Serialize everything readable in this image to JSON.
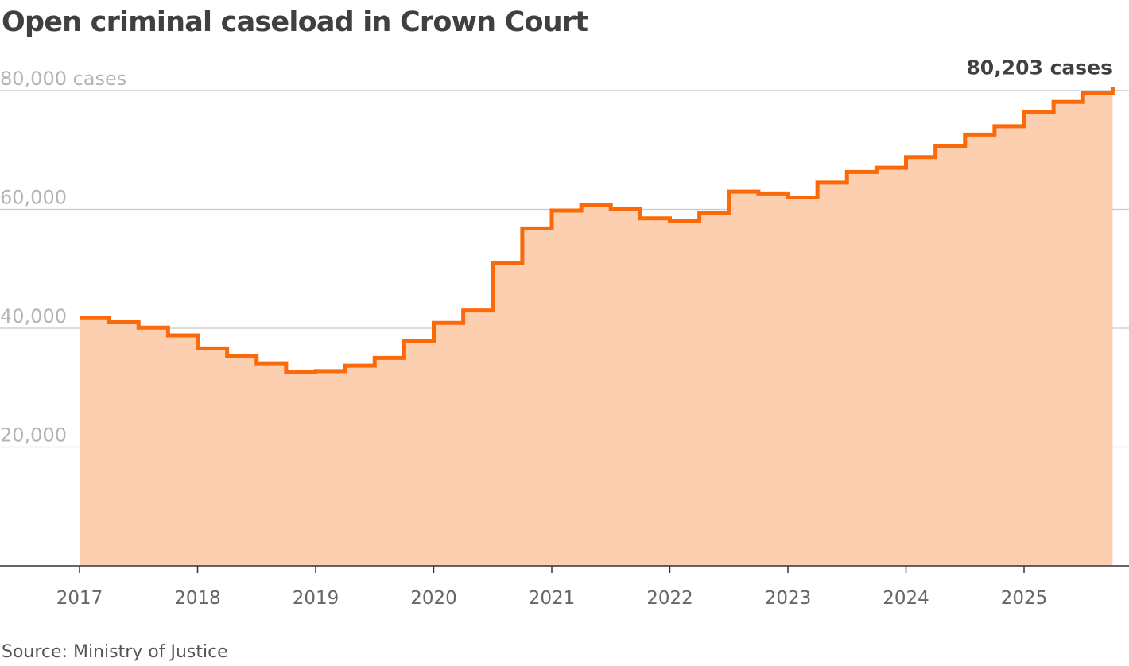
{
  "title": "Open criminal caseload in Crown Court",
  "source": "Source: Ministry of Justice",
  "colors": {
    "line": "#fb6a0a",
    "area": "#fccfb0",
    "grid": "#c8c8c8",
    "axis": "#333333"
  },
  "chart_data": {
    "type": "area",
    "step": true,
    "ylim": [
      0,
      80000
    ],
    "xlim": [
      2017,
      2025.75
    ],
    "yticks": [
      {
        "value": 20000,
        "label": "20,000"
      },
      {
        "value": 40000,
        "label": "40,000"
      },
      {
        "value": 60000,
        "label": "60,000"
      },
      {
        "value": 80000,
        "label": "80,000 cases"
      }
    ],
    "xticks": [
      "2017",
      "2018",
      "2019",
      "2020",
      "2021",
      "2022",
      "2023",
      "2024",
      "2025"
    ],
    "end_label": "80,203 cases",
    "grid": true,
    "x": [
      "2017 Q1",
      "2017 Q2",
      "2017 Q3",
      "2017 Q4",
      "2018 Q1",
      "2018 Q2",
      "2018 Q3",
      "2018 Q4",
      "2019 Q1",
      "2019 Q2",
      "2019 Q3",
      "2019 Q4",
      "2020 Q1",
      "2020 Q2",
      "2020 Q3",
      "2020 Q4",
      "2021 Q1",
      "2021 Q2",
      "2021 Q3",
      "2021 Q4",
      "2022 Q1",
      "2022 Q2",
      "2022 Q3",
      "2022 Q4",
      "2023 Q1",
      "2023 Q2",
      "2023 Q3",
      "2023 Q4",
      "2024 Q1",
      "2024 Q2",
      "2024 Q3",
      "2024 Q4",
      "2025 Q1",
      "2025 Q2",
      "2025 Q3",
      "2025 Q4"
    ],
    "values": [
      41700,
      41000,
      40100,
      38800,
      36600,
      35300,
      34100,
      32600,
      32800,
      33700,
      35000,
      37800,
      40900,
      43000,
      51000,
      56800,
      59800,
      60800,
      60000,
      58500,
      58000,
      59400,
      63000,
      62700,
      62000,
      64500,
      66300,
      67000,
      68800,
      70700,
      72600,
      74000,
      76400,
      78100,
      79600,
      80203
    ]
  }
}
